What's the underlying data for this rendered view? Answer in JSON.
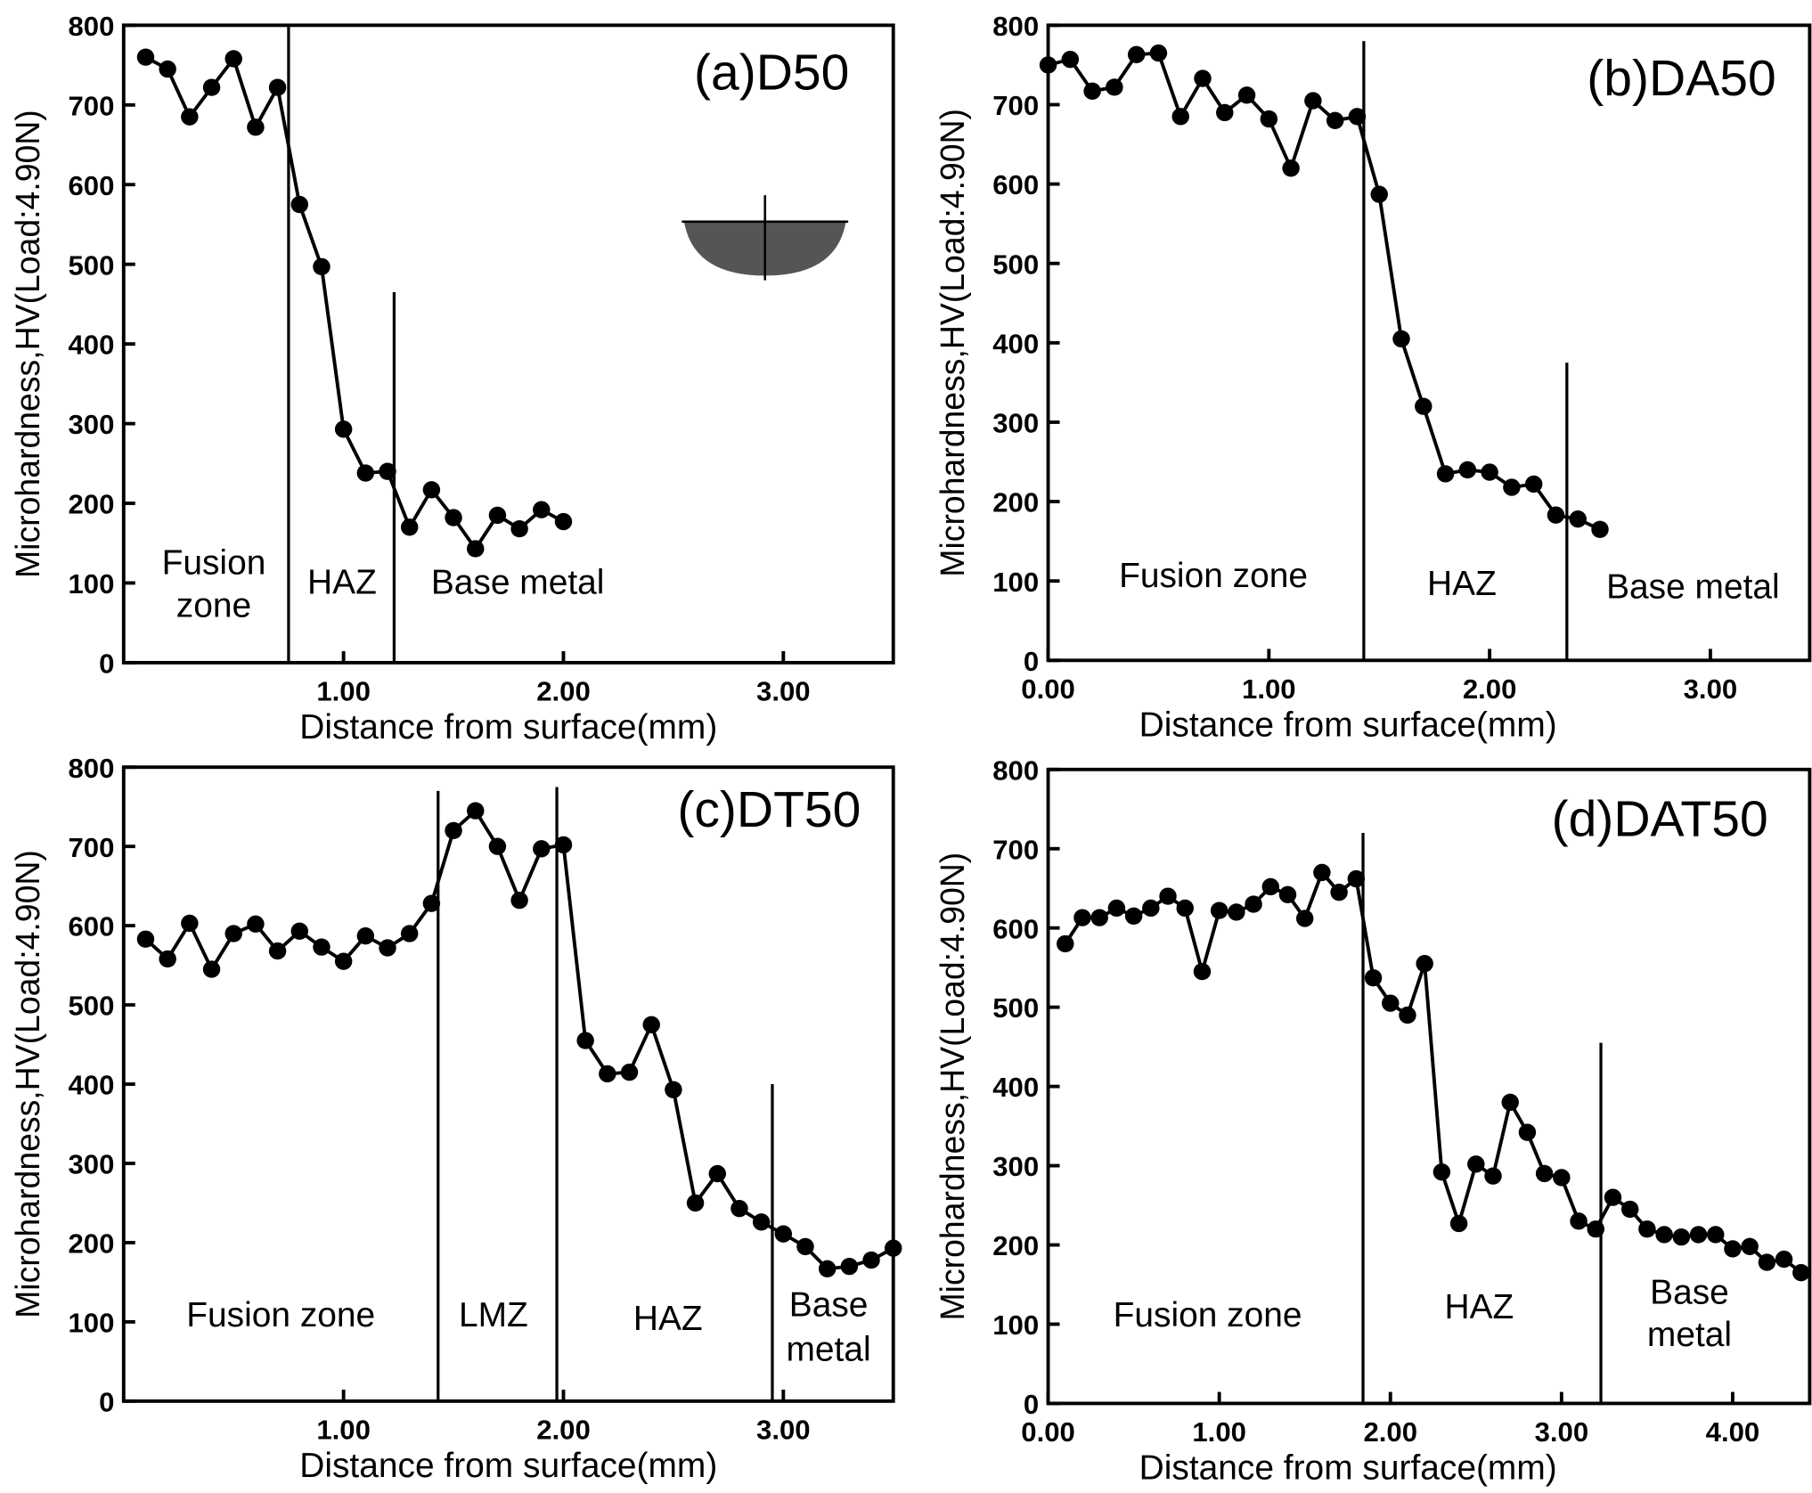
{
  "chart_data": [
    {
      "type": "line",
      "title": "(a)D50",
      "color": "#000000",
      "xlabel": "Distance from surface(mm)",
      "ylabel": "Microhardness,HV(Load:4.90N)",
      "x": [
        0.1,
        0.2,
        0.3,
        0.4,
        0.5,
        0.6,
        0.7,
        0.8,
        0.9,
        1.0,
        1.1,
        1.2,
        1.3,
        1.4,
        1.5,
        1.6,
        1.7,
        1.8,
        1.9,
        2.0
      ],
      "values": [
        760,
        745,
        685,
        722,
        758,
        672,
        722,
        575,
        497,
        293,
        238,
        240,
        170,
        217,
        182,
        143,
        185,
        168,
        192,
        177
      ],
      "xlim": [
        0,
        3.5
      ],
      "ylim": [
        0,
        800
      ],
      "xticks": [
        {
          "value": 1,
          "label": "1.00"
        },
        {
          "value": 2,
          "label": "2.00"
        },
        {
          "value": 3,
          "label": "3.00"
        }
      ],
      "yticks": [
        0,
        100,
        200,
        300,
        400,
        500,
        600,
        700,
        800
      ],
      "boundaries": [
        0.75,
        1.23
      ],
      "boundary_tops": [
        800,
        465
      ],
      "zones": [
        [
          "Fusion",
          "zone"
        ],
        [
          "HAZ"
        ],
        [
          "Base metal"
        ]
      ]
    },
    {
      "type": "line",
      "title": "(b)DA50",
      "color": "#000000",
      "xlabel": "Distance from surface(mm)",
      "ylabel": "Microhardness,HV(Load:4.90N)",
      "x": [
        0.0,
        0.1,
        0.2,
        0.3,
        0.4,
        0.5,
        0.6,
        0.7,
        0.8,
        0.9,
        1.0,
        1.1,
        1.2,
        1.3,
        1.4,
        1.5,
        1.6,
        1.7,
        1.8,
        1.9,
        2.0,
        2.1,
        2.2,
        2.3,
        2.4,
        2.5
      ],
      "values": [
        750,
        757,
        717,
        722,
        763,
        765,
        685,
        733,
        690,
        712,
        682,
        620,
        705,
        680,
        685,
        587,
        405,
        320,
        235,
        240,
        237,
        218,
        222,
        183,
        178,
        165
      ],
      "xlim": [
        0,
        3.45
      ],
      "ylim": [
        0,
        800
      ],
      "xticks": [
        {
          "value": 0,
          "label": "0.00"
        },
        {
          "value": 1,
          "label": "1.00"
        },
        {
          "value": 2,
          "label": "2.00"
        },
        {
          "value": 3,
          "label": "3.00"
        }
      ],
      "yticks": [
        0,
        100,
        200,
        300,
        400,
        500,
        600,
        700,
        800
      ],
      "boundaries": [
        1.43,
        2.35
      ],
      "boundary_tops": [
        780,
        375
      ],
      "zones": [
        [
          "Fusion zone"
        ],
        [
          "HAZ"
        ],
        [
          "Base metal"
        ]
      ]
    },
    {
      "type": "line",
      "title": "(c)DT50",
      "color": "#000000",
      "xlabel": "Distance from surface(mm)",
      "ylabel": "Microhardness,HV(Load:4.90N)",
      "x": [
        0.1,
        0.2,
        0.3,
        0.4,
        0.5,
        0.6,
        0.7,
        0.8,
        0.9,
        1.0,
        1.1,
        1.2,
        1.3,
        1.4,
        1.5,
        1.6,
        1.7,
        1.8,
        1.9,
        2.0,
        2.1,
        2.2,
        2.3,
        2.4,
        2.5,
        2.6,
        2.7,
        2.8,
        2.9,
        3.0,
        3.1,
        3.2,
        3.3,
        3.4,
        3.5
      ],
      "values": [
        583,
        558,
        603,
        545,
        590,
        602,
        568,
        593,
        573,
        555,
        587,
        572,
        590,
        628,
        720,
        745,
        700,
        632,
        697,
        702,
        455,
        413,
        415,
        475,
        393,
        250,
        287,
        243,
        226,
        211,
        195,
        167,
        170,
        178,
        193
      ],
      "xlim": [
        0,
        3.5
      ],
      "ylim": [
        0,
        800
      ],
      "xticks": [
        {
          "value": 1,
          "label": "1.00"
        },
        {
          "value": 2,
          "label": "2.00"
        },
        {
          "value": 3,
          "label": "3.00"
        }
      ],
      "yticks": [
        0,
        100,
        200,
        300,
        400,
        500,
        600,
        700,
        800
      ],
      "boundaries": [
        1.43,
        1.97,
        2.95
      ],
      "boundary_tops": [
        770,
        775,
        400
      ],
      "zones": [
        [
          "Fusion zone"
        ],
        [
          "LMZ"
        ],
        [
          "HAZ"
        ],
        [
          "Base",
          "metal"
        ]
      ]
    },
    {
      "type": "line",
      "title": "(d)DAT50",
      "color": "#000000",
      "xlabel": "Distance from surface(mm)",
      "ylabel": "Microhardness,HV(Load:4.90N)",
      "x": [
        0.1,
        0.2,
        0.3,
        0.4,
        0.5,
        0.6,
        0.7,
        0.8,
        0.9,
        1.0,
        1.1,
        1.2,
        1.3,
        1.4,
        1.5,
        1.6,
        1.7,
        1.8,
        1.9,
        2.0,
        2.1,
        2.2,
        2.3,
        2.4,
        2.5,
        2.6,
        2.7,
        2.8,
        2.9,
        3.0,
        3.1,
        3.2,
        3.3,
        3.4,
        3.5,
        3.6,
        3.7,
        3.8,
        3.9,
        4.0,
        4.1,
        4.2,
        4.3,
        4.4
      ],
      "values": [
        580,
        613,
        613,
        625,
        615,
        625,
        640,
        625,
        545,
        622,
        620,
        630,
        652,
        642,
        612,
        670,
        645,
        662,
        537,
        505,
        490,
        555,
        292,
        227,
        302,
        287,
        380,
        342,
        290,
        285,
        230,
        220,
        260,
        245,
        220,
        213,
        210,
        213,
        213,
        195,
        198,
        178,
        182,
        165
      ],
      "xlim": [
        0,
        4.45
      ],
      "ylim": [
        0,
        800
      ],
      "xticks": [
        {
          "value": 0,
          "label": "0.00"
        },
        {
          "value": 1,
          "label": "1.00"
        },
        {
          "value": 2,
          "label": "2.00"
        },
        {
          "value": 3,
          "label": "3.00"
        },
        {
          "value": 4,
          "label": "4.00"
        }
      ],
      "yticks": [
        0,
        100,
        200,
        300,
        400,
        500,
        600,
        700,
        800
      ],
      "boundaries": [
        1.84,
        3.23
      ],
      "boundary_tops": [
        720,
        455
      ],
      "zones": [
        [
          "Fusion zone"
        ],
        [
          "HAZ"
        ],
        [
          "Base",
          "metal"
        ]
      ]
    }
  ]
}
